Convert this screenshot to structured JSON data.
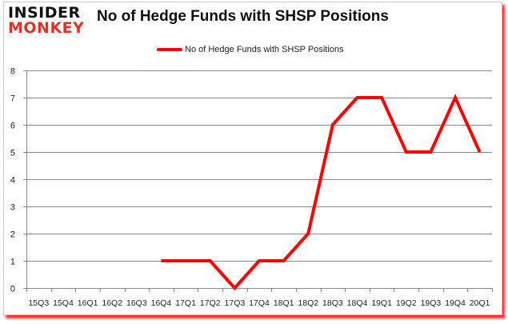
{
  "logo": {
    "line1": "INSIDER",
    "line2": "MONKEY"
  },
  "header": {
    "title": "No of Hedge Funds with SHSP Positions"
  },
  "legend": {
    "label": "No of Hedge Funds with SHSP Positions",
    "color": "#ff0000"
  },
  "colors": {
    "line": "#ff0000",
    "grid": "#888888",
    "frame_shadow": "#ff0000"
  },
  "chart_data": {
    "type": "line",
    "title": "No of Hedge Funds with SHSP Positions",
    "xlabel": "",
    "ylabel": "",
    "ylim": [
      0,
      8
    ],
    "yticks": [
      0,
      1,
      2,
      3,
      4,
      5,
      6,
      7,
      8
    ],
    "grid": true,
    "legend_position": "top",
    "categories": [
      "15Q3",
      "15Q4",
      "16Q1",
      "16Q2",
      "16Q3",
      "16Q4",
      "17Q1",
      "17Q2",
      "17Q3",
      "17Q4",
      "18Q1",
      "18Q2",
      "18Q3",
      "18Q4",
      "19Q1",
      "19Q2",
      "19Q3",
      "19Q4",
      "20Q1"
    ],
    "series": [
      {
        "name": "No of Hedge Funds with SHSP Positions",
        "color": "#ff0000",
        "values": [
          null,
          null,
          null,
          null,
          null,
          1,
          1,
          1,
          0,
          1,
          1,
          2,
          6,
          7,
          7,
          5,
          5,
          7,
          5
        ]
      }
    ]
  }
}
